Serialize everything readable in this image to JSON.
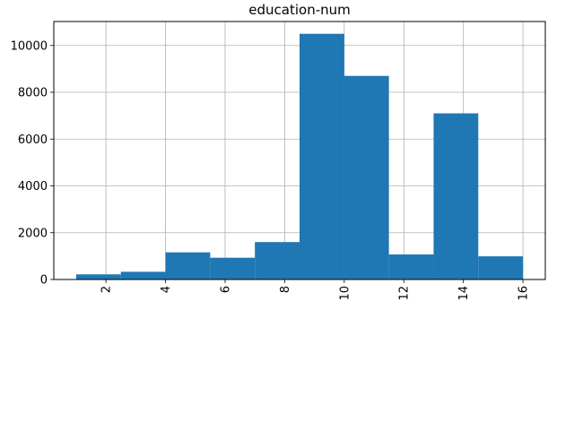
{
  "chart_data": {
    "type": "bar",
    "title": "education-num",
    "xlabel": "",
    "ylabel": "",
    "bins": [
      {
        "start": 1.0,
        "end": 2.5,
        "count": 220
      },
      {
        "start": 2.5,
        "end": 4.0,
        "count": 330
      },
      {
        "start": 4.0,
        "end": 5.5,
        "count": 1160
      },
      {
        "start": 5.5,
        "end": 7.0,
        "count": 930
      },
      {
        "start": 7.0,
        "end": 8.5,
        "count": 1600
      },
      {
        "start": 8.5,
        "end": 10.0,
        "count": 10500
      },
      {
        "start": 10.0,
        "end": 11.5,
        "count": 8700
      },
      {
        "start": 11.5,
        "end": 13.0,
        "count": 1070
      },
      {
        "start": 13.0,
        "end": 14.5,
        "count": 7100
      },
      {
        "start": 14.5,
        "end": 16.0,
        "count": 990
      }
    ],
    "xlim": [
      0.25,
      16.75
    ],
    "ylim": [
      0,
      11025
    ],
    "x_ticks": [
      2,
      4,
      6,
      8,
      10,
      12,
      14,
      16
    ],
    "y_ticks": [
      0,
      2000,
      4000,
      6000,
      8000,
      10000
    ],
    "grid": true,
    "bar_color": "#1f77b4",
    "grid_color": "#b0b0b0"
  }
}
